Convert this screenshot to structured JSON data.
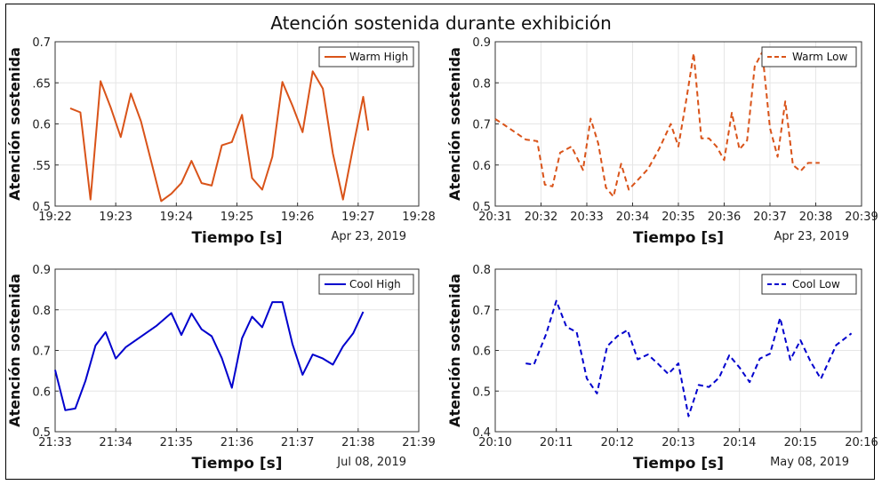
{
  "title": "Atención sostenida durante exhibición",
  "chart_data": [
    {
      "type": "line",
      "title": "",
      "xlabel": "Tiempo [s]",
      "ylabel": "Atención sostenida",
      "date_label": "Apr 23, 2019",
      "x_ticks": [
        "19:22",
        "19:23",
        "19:24",
        "19:25",
        "19:26",
        "19:27",
        "19:28"
      ],
      "xlim": [
        "19:22",
        "19:28"
      ],
      "y_ticks": [
        "0.5",
        ".55",
        "0.6",
        ".65",
        "0.7"
      ],
      "ylim": [
        0.5,
        0.7
      ],
      "grid": true,
      "legend_position": "top-right",
      "series": [
        {
          "name": "Warm High",
          "color": "#D95319",
          "style": "solid",
          "x": [
            "19:22:15",
            "19:22:25",
            "19:22:35",
            "19:22:45",
            "19:22:55",
            "19:23:05",
            "19:23:15",
            "19:23:25",
            "19:23:35",
            "19:23:45",
            "19:23:55",
            "19:24:05",
            "19:24:15",
            "19:24:25",
            "19:24:35",
            "19:24:45",
            "19:24:55",
            "19:25:05",
            "19:25:15",
            "19:25:25",
            "19:25:35",
            "19:25:45",
            "19:25:55",
            "19:26:05",
            "19:26:15",
            "19:26:25",
            "19:26:35",
            "19:26:45",
            "19:26:55",
            "19:27:05",
            "19:27:10"
          ],
          "values": [
            0.619,
            0.614,
            0.508,
            0.652,
            0.62,
            0.584,
            0.637,
            0.603,
            0.555,
            0.506,
            0.515,
            0.528,
            0.555,
            0.528,
            0.525,
            0.574,
            0.578,
            0.611,
            0.534,
            0.52,
            0.56,
            0.651,
            0.622,
            0.59,
            0.664,
            0.643,
            0.564,
            0.508,
            0.572,
            0.633,
            0.592
          ]
        }
      ]
    },
    {
      "type": "line",
      "title": "",
      "xlabel": "Tiempo [s]",
      "ylabel": "Atención sostenida",
      "date_label": "Apr 23, 2019",
      "x_ticks": [
        "20:31",
        "20:32",
        "20:33",
        "20:34",
        "20:35",
        "20:36",
        "20:37",
        "20:38",
        "20:39"
      ],
      "xlim": [
        "20:31",
        "20:39"
      ],
      "y_ticks": [
        "0.5",
        "0.6",
        "0.7",
        "0.8",
        "0.9"
      ],
      "ylim": [
        0.5,
        0.9
      ],
      "grid": true,
      "legend_position": "top-right",
      "series": [
        {
          "name": "Warm Low",
          "color": "#D95319",
          "style": "dashed",
          "x": [
            "20:31:00",
            "20:31:10",
            "20:31:40",
            "20:31:55",
            "20:32:05",
            "20:32:15",
            "20:32:25",
            "20:32:40",
            "20:32:55",
            "20:33:05",
            "20:33:15",
            "20:33:25",
            "20:33:35",
            "20:33:45",
            "20:33:55",
            "20:34:05",
            "20:34:20",
            "20:34:35",
            "20:34:50",
            "20:35:00",
            "20:35:10",
            "20:35:20",
            "20:35:30",
            "20:35:40",
            "20:35:50",
            "20:36:00",
            "20:36:10",
            "20:36:20",
            "20:36:30",
            "20:36:40",
            "20:36:50",
            "20:37:00",
            "20:37:10",
            "20:37:20",
            "20:37:30",
            "20:37:40",
            "20:37:50",
            "20:38:05"
          ],
          "values": [
            0.712,
            0.7,
            0.662,
            0.658,
            0.552,
            0.548,
            0.63,
            0.645,
            0.588,
            0.713,
            0.652,
            0.545,
            0.523,
            0.603,
            0.54,
            0.56,
            0.59,
            0.64,
            0.7,
            0.645,
            0.755,
            0.872,
            0.665,
            0.665,
            0.645,
            0.612,
            0.727,
            0.638,
            0.66,
            0.84,
            0.875,
            0.69,
            0.62,
            0.755,
            0.6,
            0.585,
            0.605,
            0.605
          ]
        }
      ]
    },
    {
      "type": "line",
      "title": "",
      "xlabel": "Tiempo [s]",
      "ylabel": "Atención sostenida",
      "date_label": "Jul 08, 2019",
      "x_ticks": [
        "21:33",
        "21:34",
        "21:35",
        "21:36",
        "21:37",
        "21:38",
        "21:39"
      ],
      "xlim": [
        "21:33",
        "21:39"
      ],
      "y_ticks": [
        "0.5",
        "0.6",
        "0.7",
        "0.8",
        "0.9"
      ],
      "ylim": [
        0.5,
        0.9
      ],
      "grid": true,
      "legend_position": "top-right",
      "series": [
        {
          "name": "Cool High",
          "color": "#0000CD",
          "style": "solid",
          "x": [
            "21:33:00",
            "21:33:10",
            "21:33:20",
            "21:33:30",
            "21:33:40",
            "21:33:50",
            "21:34:00",
            "21:34:10",
            "21:34:40",
            "21:34:55",
            "21:35:05",
            "21:35:15",
            "21:35:25",
            "21:35:35",
            "21:35:45",
            "21:35:55",
            "21:36:05",
            "21:36:15",
            "21:36:25",
            "21:36:35",
            "21:36:45",
            "21:36:55",
            "21:37:05",
            "21:37:15",
            "21:37:25",
            "21:37:35",
            "21:37:45",
            "21:37:55",
            "21:38:05"
          ],
          "values": [
            0.652,
            0.553,
            0.557,
            0.625,
            0.712,
            0.745,
            0.68,
            0.708,
            0.76,
            0.792,
            0.738,
            0.791,
            0.752,
            0.735,
            0.681,
            0.608,
            0.73,
            0.783,
            0.757,
            0.819,
            0.819,
            0.715,
            0.64,
            0.69,
            0.68,
            0.665,
            0.71,
            0.742,
            0.795
          ]
        }
      ]
    },
    {
      "type": "line",
      "title": "",
      "xlabel": "Tiempo [s]",
      "ylabel": "Atención sostenida",
      "date_label": "May 08, 2019",
      "x_ticks": [
        "20:10",
        "20:11",
        "20:12",
        "20:13",
        "20:14",
        "20:15",
        "20:16"
      ],
      "xlim": [
        "20:10",
        "20:16"
      ],
      "y_ticks": [
        "0.4",
        "0.5",
        "0.6",
        "0.7",
        "0.8"
      ],
      "ylim": [
        0.4,
        0.8
      ],
      "grid": true,
      "legend_position": "top-right",
      "series": [
        {
          "name": "Cool Low",
          "color": "#0000CD",
          "style": "dashed",
          "x": [
            "20:10:30",
            "20:10:38",
            "20:10:50",
            "20:11:00",
            "20:11:10",
            "20:11:20",
            "20:11:30",
            "20:11:40",
            "20:11:50",
            "20:12:00",
            "20:12:10",
            "20:12:20",
            "20:12:30",
            "20:12:40",
            "20:12:50",
            "20:13:00",
            "20:13:10",
            "20:13:20",
            "20:13:30",
            "20:13:40",
            "20:13:50",
            "20:14:00",
            "20:14:10",
            "20:14:20",
            "20:14:30",
            "20:14:40",
            "20:14:50",
            "20:15:00",
            "20:15:10",
            "20:15:20",
            "20:15:35",
            "20:15:50"
          ],
          "values": [
            0.568,
            0.565,
            0.64,
            0.722,
            0.658,
            0.645,
            0.531,
            0.494,
            0.61,
            0.635,
            0.65,
            0.578,
            0.59,
            0.567,
            0.542,
            0.568,
            0.438,
            0.515,
            0.51,
            0.533,
            0.588,
            0.558,
            0.522,
            0.58,
            0.592,
            0.68,
            0.577,
            0.625,
            0.572,
            0.53,
            0.613,
            0.642
          ]
        }
      ]
    }
  ]
}
